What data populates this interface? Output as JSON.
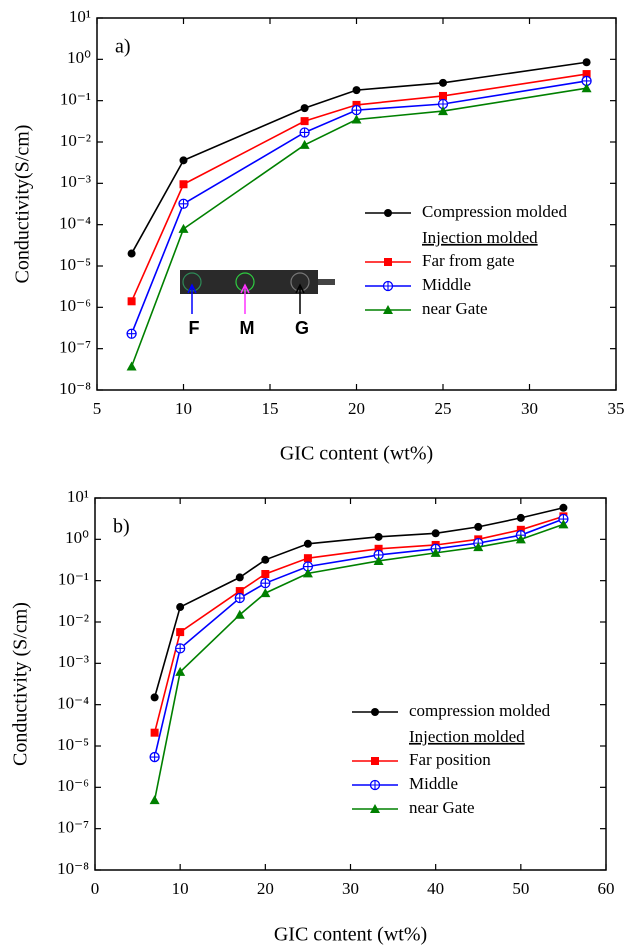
{
  "chart_data": [
    {
      "type": "line",
      "label": "a)",
      "xlabel": "GIC content (wt%)",
      "ylabel": "Conductivity(S/cm)",
      "yscale": "log",
      "x": [
        7,
        10,
        17,
        20,
        25,
        33.3
      ],
      "xlim": [
        5,
        35
      ],
      "xticks": [
        5,
        10,
        15,
        20,
        25,
        30,
        35
      ],
      "ylim": [
        1e-08,
        10
      ],
      "yticks": [
        {
          "value": 1e-08,
          "label": "10⁻⁸"
        },
        {
          "value": 1e-07,
          "label": "10⁻⁷"
        },
        {
          "value": 1e-06,
          "label": "10⁻⁶"
        },
        {
          "value": 1e-05,
          "label": "10⁻⁵"
        },
        {
          "value": 0.0001,
          "label": "10⁻⁴"
        },
        {
          "value": 0.001,
          "label": "10⁻³"
        },
        {
          "value": 0.01,
          "label": "10⁻²"
        },
        {
          "value": 0.1,
          "label": "10⁻¹"
        },
        {
          "value": 1,
          "label": "10⁰"
        },
        {
          "value": 10,
          "label": "10¹"
        }
      ],
      "legend_subtitle": "Injection molded",
      "annotations": [
        "F",
        "M",
        "G"
      ],
      "series": [
        {
          "name": "Compression molded",
          "color": "#000000",
          "marker": "circle",
          "values": [
            2e-05,
            0.0036,
            0.066,
            0.18,
            0.27,
            0.85
          ]
        },
        {
          "name": "Far from gate",
          "color": "#ff0000",
          "marker": "square",
          "values": [
            1.4e-06,
            0.00095,
            0.032,
            0.079,
            0.13,
            0.44
          ]
        },
        {
          "name": "Middle",
          "color": "#0000ff",
          "marker": "circle-cross",
          "values": [
            2.3e-07,
            0.00032,
            0.017,
            0.059,
            0.083,
            0.3
          ]
        },
        {
          "name": "near Gate",
          "color": "#008000",
          "marker": "triangle",
          "values": [
            3.7e-08,
            7.9e-05,
            0.0085,
            0.035,
            0.056,
            0.2
          ]
        }
      ]
    },
    {
      "type": "line",
      "label": "b)",
      "xlabel": "GIC content (wt%)",
      "ylabel": "Conductivity (S/cm)",
      "yscale": "log",
      "x": [
        7,
        10,
        17,
        20,
        25,
        33.3,
        40,
        45,
        50,
        55
      ],
      "xlim": [
        0,
        60
      ],
      "xticks": [
        0,
        10,
        20,
        30,
        40,
        50,
        60
      ],
      "ylim": [
        1e-08,
        10
      ],
      "yticks": [
        {
          "value": 1e-08,
          "label": "10⁻⁸"
        },
        {
          "value": 1e-07,
          "label": "10⁻⁷"
        },
        {
          "value": 1e-06,
          "label": "10⁻⁶"
        },
        {
          "value": 1e-05,
          "label": "10⁻⁵"
        },
        {
          "value": 0.0001,
          "label": "10⁻⁴"
        },
        {
          "value": 0.001,
          "label": "10⁻³"
        },
        {
          "value": 0.01,
          "label": "10⁻²"
        },
        {
          "value": 0.1,
          "label": "10⁻¹"
        },
        {
          "value": 1,
          "label": "10⁰"
        },
        {
          "value": 10,
          "label": "10¹"
        }
      ],
      "legend_subtitle": "Injection molded",
      "series": [
        {
          "name": "compression molded",
          "color": "#000000",
          "marker": "circle",
          "values": [
            0.00015,
            0.023,
            0.12,
            0.32,
            0.78,
            1.15,
            1.4,
            2.0,
            3.3,
            5.8
          ]
        },
        {
          "name": "Far position",
          "color": "#ff0000",
          "marker": "square",
          "values": [
            2.1e-05,
            0.0057,
            0.056,
            0.145,
            0.35,
            0.59,
            0.73,
            1.0,
            1.7,
            3.6
          ]
        },
        {
          "name": "Middle",
          "color": "#0000ff",
          "marker": "circle-cross",
          "values": [
            5.4e-06,
            0.0023,
            0.038,
            0.087,
            0.22,
            0.42,
            0.59,
            0.81,
            1.26,
            3.1
          ]
        },
        {
          "name": "near Gate",
          "color": "#008000",
          "marker": "triangle",
          "values": [
            4.9e-07,
            0.00062,
            0.015,
            0.05,
            0.15,
            0.3,
            0.47,
            0.65,
            1.0,
            2.3
          ]
        }
      ]
    }
  ]
}
